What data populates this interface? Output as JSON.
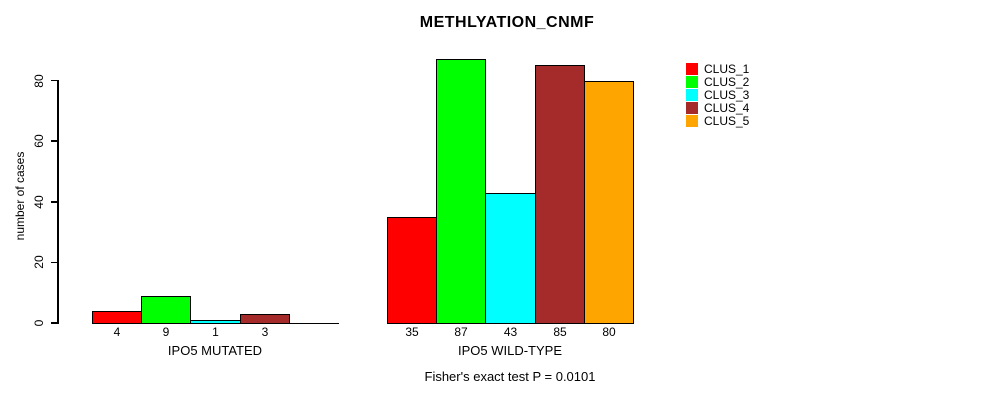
{
  "title": "METHLYATION_CNMF",
  "footnote": "Fisher's exact test P = 0.0101",
  "chart_data": {
    "type": "bar",
    "title": "METHLYATION_CNMF",
    "xlabel": "",
    "ylabel": "number of cases",
    "ylim": [
      0,
      88
    ],
    "yticks": [
      0,
      20,
      40,
      60,
      80
    ],
    "grid": false,
    "legend_position": "right-outside",
    "categories": [
      "IPO5 MUTATED",
      "IPO5 WILD-TYPE"
    ],
    "series": [
      {
        "name": "CLUS_1",
        "color": "#ff0000",
        "values": [
          4,
          35
        ]
      },
      {
        "name": "CLUS_2",
        "color": "#00ff00",
        "values": [
          9,
          87
        ]
      },
      {
        "name": "CLUS_3",
        "color": "#00ffff",
        "values": [
          1,
          43
        ]
      },
      {
        "name": "CLUS_4",
        "color": "#a52a2a",
        "values": [
          3,
          85
        ]
      },
      {
        "name": "CLUS_5",
        "color": "#ffa500",
        "values": [
          0,
          80
        ]
      }
    ],
    "bar_value_labels": [
      [
        "4",
        "9",
        "1",
        "3",
        ""
      ],
      [
        "35",
        "87",
        "43",
        "85",
        "80"
      ]
    ],
    "footnote": "Fisher's exact test P = 0.0101"
  }
}
